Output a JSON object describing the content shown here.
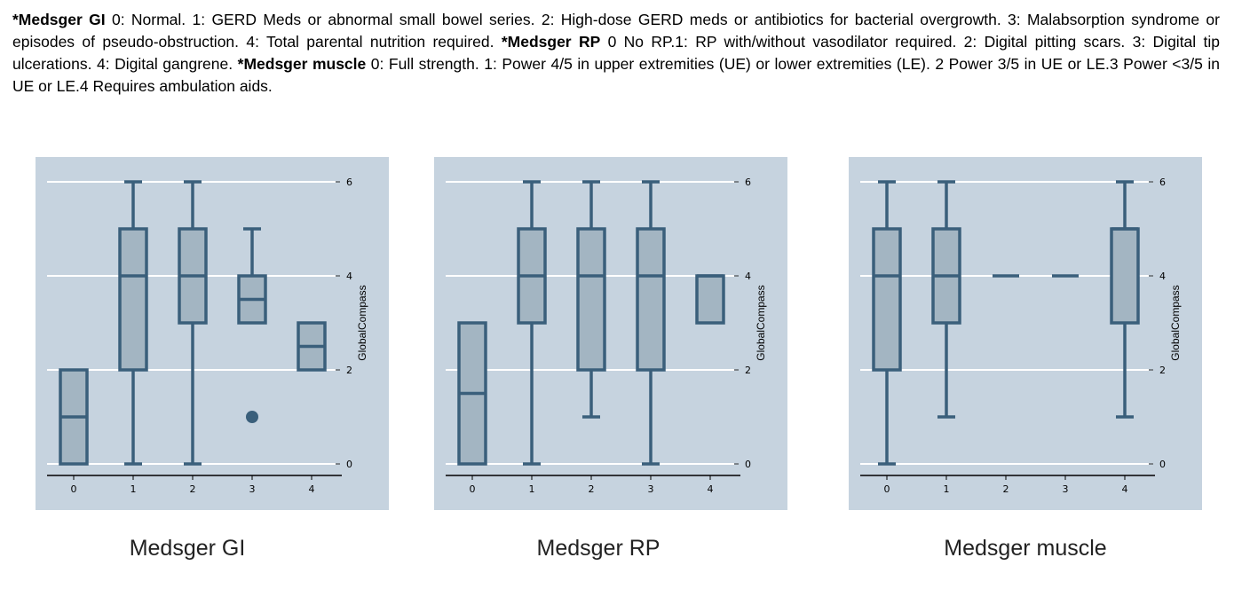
{
  "caption": [
    {
      "bold": "*Medsger GI",
      "text": " 0: Normal. 1: GERD Meds or abnormal small bowel series. 2: High-dose GERD meds or antibiotics for bacterial overgrowth. 3: Malabsorption syndrome or episodes of pseudo-obstruction. 4: Total parental nutrition required. "
    },
    {
      "bold": "*Medsger RP",
      "text": " 0 No RP.1: RP with/without vasodilator required. 2: Digital pitting scars. 3: Digital tip ulcerations. 4: Digital gangrene. "
    },
    {
      "bold": "*Medsger muscle",
      "text": " 0: Full strength. 1: Power 4/5 in upper extremities (UE) or lower extremities (LE). 2 Power 3/5 in UE or LE.3 Power <3/5 in UE or LE.4 Requires ambulation aids."
    }
  ],
  "colors": {
    "panel_bg": "#c6d3df",
    "box_fill": "#a3b5c2",
    "box_stroke": "#3a5f7b",
    "grid": "#ffffff",
    "axis": "#000000"
  },
  "chart_data": [
    {
      "type": "box",
      "title": "Medsger GI",
      "ylabel": "GlobalCompass",
      "categories": [
        "0",
        "1",
        "2",
        "3",
        "4"
      ],
      "ylim": [
        0,
        6
      ],
      "yticks": [
        "0",
        "2",
        "4",
        "6"
      ],
      "grid": true,
      "boxes": [
        {
          "x": "0",
          "min": 0,
          "q1": 0,
          "median": 1,
          "q3": 2,
          "max": 2,
          "outliers": []
        },
        {
          "x": "1",
          "min": 0,
          "q1": 2,
          "median": 4,
          "q3": 5,
          "max": 6,
          "outliers": []
        },
        {
          "x": "2",
          "min": 0,
          "q1": 3,
          "median": 4,
          "q3": 5,
          "max": 6,
          "outliers": []
        },
        {
          "x": "3",
          "min": 3,
          "q1": 3,
          "median": 3.5,
          "q3": 4,
          "max": 5,
          "outliers": [
            1
          ]
        },
        {
          "x": "4",
          "min": 2,
          "q1": 2,
          "median": 2.5,
          "q3": 3,
          "max": 3,
          "outliers": []
        }
      ]
    },
    {
      "type": "box",
      "title": "Medsger RP",
      "ylabel": "GlobalCompass",
      "categories": [
        "0",
        "1",
        "2",
        "3",
        "4"
      ],
      "ylim": [
        0,
        6
      ],
      "yticks": [
        "0",
        "2",
        "4",
        "6"
      ],
      "grid": true,
      "boxes": [
        {
          "x": "0",
          "min": 0,
          "q1": 0,
          "median": 1.5,
          "q3": 3,
          "max": 3,
          "outliers": []
        },
        {
          "x": "1",
          "min": 0,
          "q1": 3,
          "median": 4,
          "q3": 5,
          "max": 6,
          "outliers": []
        },
        {
          "x": "2",
          "min": 1,
          "q1": 2,
          "median": 4,
          "q3": 5,
          "max": 6,
          "outliers": []
        },
        {
          "x": "3",
          "min": 0,
          "q1": 2,
          "median": 4,
          "q3": 5,
          "max": 6,
          "outliers": []
        },
        {
          "x": "4",
          "min": 3,
          "q1": 3,
          "median": 4,
          "q3": 4,
          "max": 4,
          "outliers": []
        }
      ]
    },
    {
      "type": "box",
      "title": "Medsger muscle",
      "ylabel": "GlobalCompass",
      "categories": [
        "0",
        "1",
        "2",
        "3",
        "4"
      ],
      "ylim": [
        0,
        6
      ],
      "yticks": [
        "0",
        "2",
        "4",
        "6"
      ],
      "grid": true,
      "boxes": [
        {
          "x": "0",
          "min": 0,
          "q1": 2,
          "median": 4,
          "q3": 5,
          "max": 6,
          "outliers": []
        },
        {
          "x": "1",
          "min": 1,
          "q1": 3,
          "median": 4,
          "q3": 5,
          "max": 6,
          "outliers": []
        },
        {
          "x": "2",
          "min": 4,
          "q1": 4,
          "median": 4,
          "q3": 4,
          "max": 4,
          "outliers": []
        },
        {
          "x": "3",
          "min": 4,
          "q1": 4,
          "median": 4,
          "q3": 4,
          "max": 4,
          "outliers": []
        },
        {
          "x": "4",
          "min": 1,
          "q1": 3,
          "median": 5,
          "q3": 5,
          "max": 6,
          "outliers": []
        }
      ]
    }
  ]
}
